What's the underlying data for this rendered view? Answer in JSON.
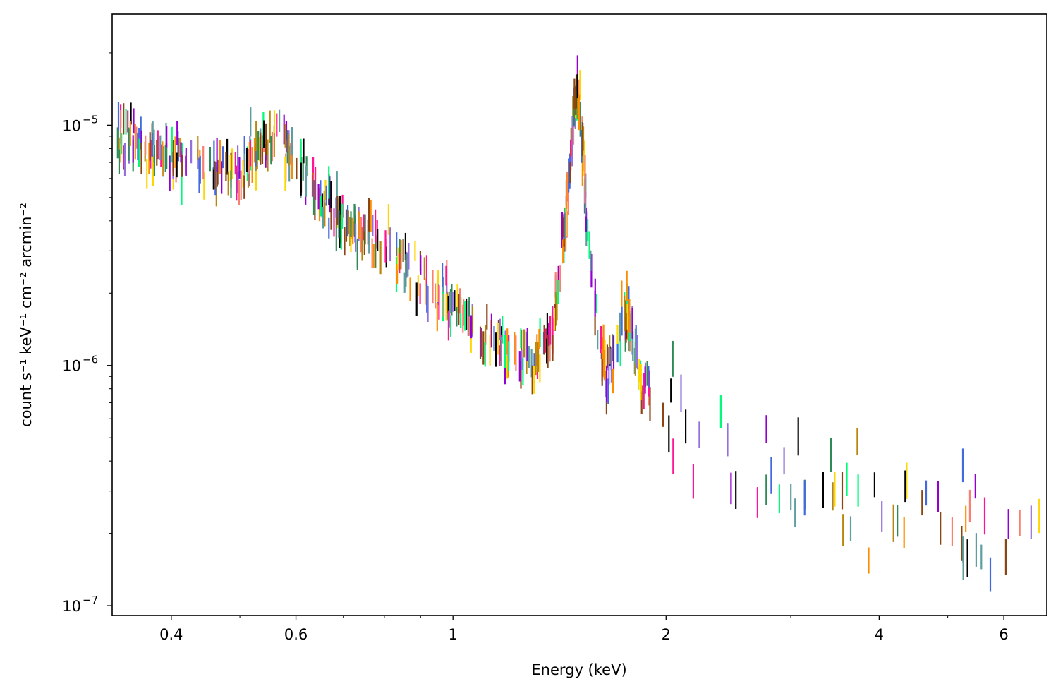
{
  "chart_data": {
    "type": "scatter",
    "xlabel": "Energy (keV)",
    "ylabel": "count s⁻¹ keV⁻¹ cm⁻² arcmin⁻²",
    "x_scale": "log",
    "y_scale": "log",
    "xlim": [
      0.33,
      6.9
    ],
    "ylim": [
      9.1e-08,
      2.9e-05
    ],
    "grid": false,
    "legend": "none",
    "x_ticks": [
      {
        "value": 0.4,
        "label": "0.4"
      },
      {
        "value": 0.6,
        "label": "0.6"
      },
      {
        "value": 1,
        "label": "1"
      },
      {
        "value": 2,
        "label": "2"
      },
      {
        "value": 4,
        "label": "4"
      },
      {
        "value": 6,
        "label": "6"
      }
    ],
    "y_ticks": [
      {
        "value": 1e-07,
        "mantissa": "10",
        "exponent": "−7"
      },
      {
        "value": 1e-06,
        "mantissa": "10",
        "exponent": "−6"
      },
      {
        "value": 1e-05,
        "mantissa": "10",
        "exponent": "−5"
      }
    ],
    "series_colors": [
      "#00fa7a",
      "#4169e1",
      "#ff1493",
      "#ffd700",
      "#ff8c00",
      "#fa8072",
      "#9400d3",
      "#b8860b",
      "#2e8b57",
      "#000000",
      "#9370db",
      "#5f9ea0",
      "#8b4513"
    ],
    "trend": [
      [
        0.33,
        9e-06
      ],
      [
        0.36,
        8.2e-06
      ],
      [
        0.4,
        7.2e-06
      ],
      [
        0.45,
        6.3e-06
      ],
      [
        0.5,
        6.6e-06
      ],
      [
        0.55,
        8.5e-06
      ],
      [
        0.58,
        8.5e-06
      ],
      [
        0.6,
        7e-06
      ],
      [
        0.65,
        5e-06
      ],
      [
        0.7,
        4e-06
      ],
      [
        0.8,
        3.1e-06
      ],
      [
        0.9,
        2.3e-06
      ],
      [
        1.0,
        1.75e-06
      ],
      [
        1.1,
        1.35e-06
      ],
      [
        1.2,
        1.1e-06
      ],
      [
        1.3,
        1.05e-06
      ],
      [
        1.38,
        1.3e-06
      ],
      [
        1.43,
        3e-06
      ],
      [
        1.47,
        8e-06
      ],
      [
        1.49,
        1.35e-05
      ],
      [
        1.51,
        1.2e-05
      ],
      [
        1.53,
        7e-06
      ],
      [
        1.56,
        3e-06
      ],
      [
        1.6,
        1.4e-06
      ],
      [
        1.65,
        9.5e-07
      ],
      [
        1.7,
        1.15e-06
      ],
      [
        1.74,
        1.7e-06
      ],
      [
        1.78,
        1.5e-06
      ],
      [
        1.85,
        8e-07
      ],
      [
        2.0,
        6.2e-07
      ],
      [
        2.4,
        4.3e-07
      ],
      [
        3.0,
        3.3e-07
      ],
      [
        4.0,
        2.4e-07
      ],
      [
        5.0,
        2.2e-07
      ],
      [
        6.9,
        2.2e-07
      ]
    ]
  }
}
